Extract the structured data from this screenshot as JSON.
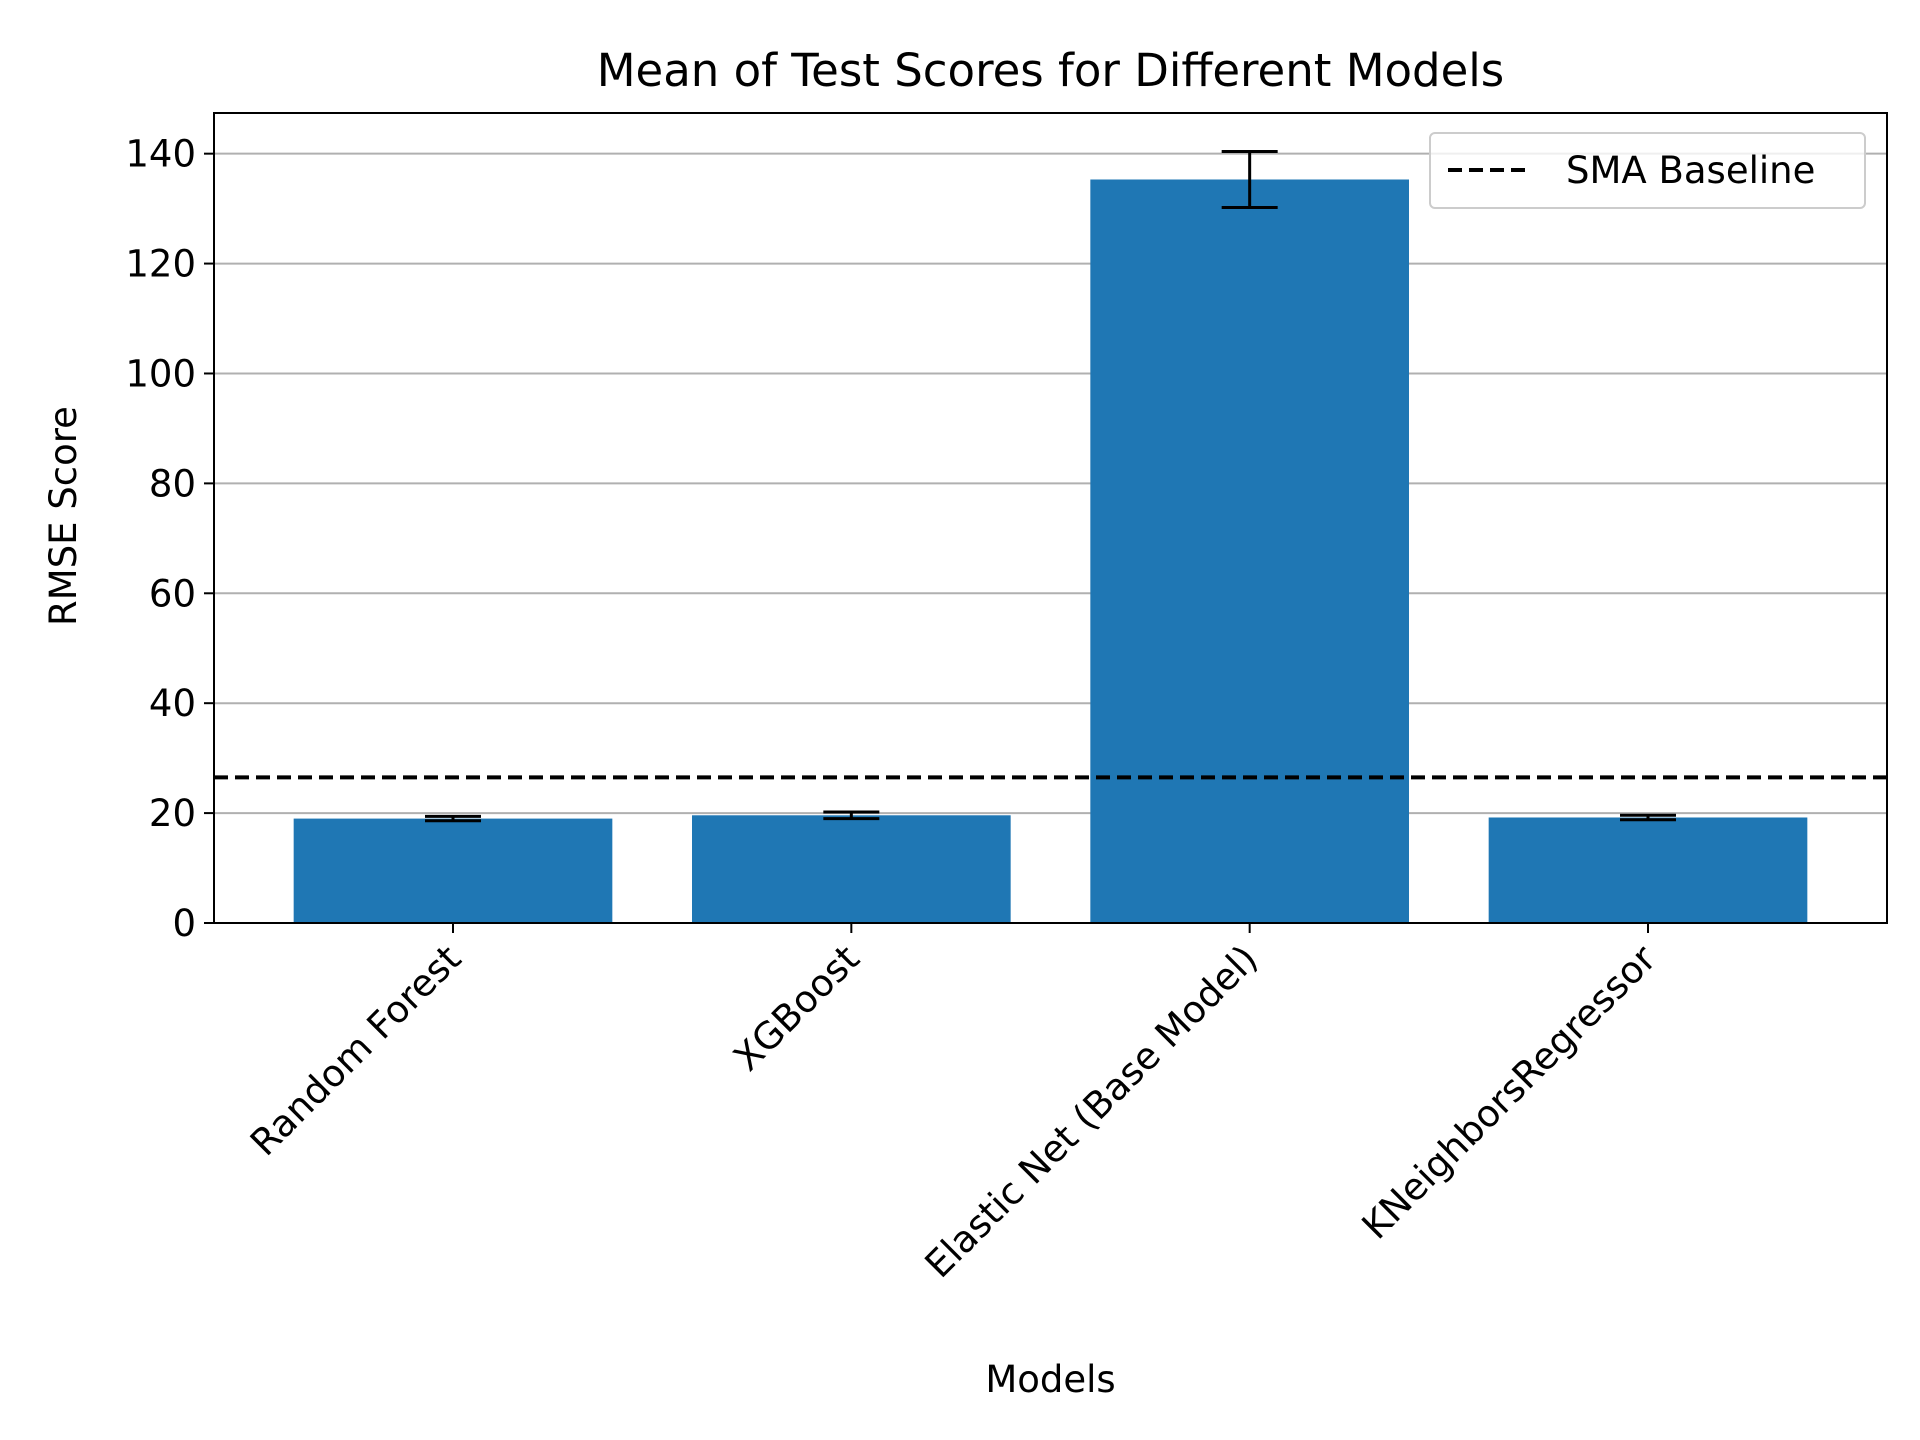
{
  "chart_data": {
    "type": "bar",
    "title": "Mean of Test Scores for Different Models",
    "xlabel": "Models",
    "ylabel": "RMSE Score",
    "categories": [
      "Random Forest",
      "XGBoost",
      "Elastic Net (Base Model)",
      "KNeighborsRegressor"
    ],
    "values": [
      19.0,
      19.6,
      135.3,
      19.2
    ],
    "errors": [
      0.4,
      0.6,
      5.1,
      0.4
    ],
    "ylim": [
      0,
      147.4
    ],
    "yticks": [
      0,
      20,
      40,
      60,
      80,
      100,
      120,
      140
    ],
    "ytick_labels": [
      "0",
      "20",
      "40",
      "60",
      "80",
      "100",
      "120",
      "140"
    ],
    "baseline": {
      "name": "SMA Baseline",
      "value": 26.5,
      "style": "dashed",
      "color": "#000000"
    },
    "bar_color": "#1f77b4",
    "grid": {
      "axis": "y",
      "on": true,
      "color": "#b0b0b0"
    },
    "legend": {
      "position": "top-right",
      "entries": [
        "SMA Baseline"
      ]
    }
  }
}
